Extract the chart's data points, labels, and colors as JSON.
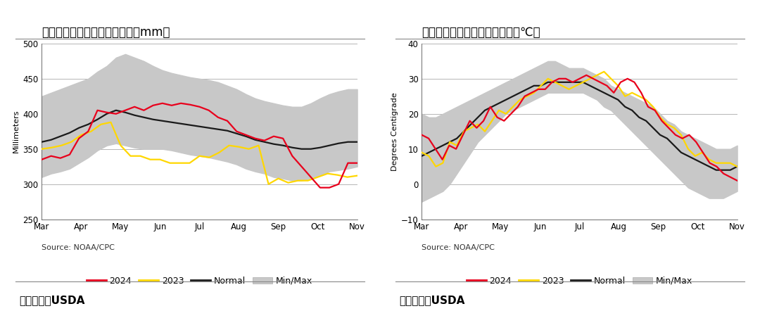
{
  "title1": "图：美豆主产区土壤墧情状况（mm）",
  "title2": "图：美豆主产区最高气温情况（℃）",
  "ylabel1": "Millimeters",
  "ylabel2": "Degrees Centigrade",
  "source_text": "Source: NOAA/CPC",
  "footer_text": "图表来源：USDA",
  "x_labels": [
    "Mar",
    "Apr",
    "May",
    "Jun",
    "Jul",
    "Aug",
    "Sep",
    "Oct",
    "Nov"
  ],
  "chart1": {
    "ylim": [
      250,
      500
    ],
    "yticks": [
      250,
      300,
      350,
      400,
      450,
      500
    ],
    "soil_2024": [
      335,
      340,
      337,
      342,
      365,
      375,
      405,
      402,
      400,
      405,
      410,
      405,
      412,
      415,
      412,
      415,
      413,
      410,
      405,
      395,
      390,
      375,
      370,
      365,
      362,
      368,
      365,
      340,
      325,
      310,
      295,
      295,
      300,
      330,
      330
    ],
    "soil_2023": [
      350,
      352,
      355,
      360,
      370,
      375,
      385,
      388,
      355,
      340,
      340,
      335,
      335,
      330,
      330,
      330,
      340,
      338,
      345,
      355,
      353,
      350,
      355,
      300,
      308,
      302,
      305,
      305,
      310,
      315,
      313,
      310,
      312
    ],
    "soil_normal": [
      360,
      363,
      368,
      373,
      380,
      385,
      392,
      400,
      405,
      402,
      398,
      395,
      392,
      390,
      388,
      386,
      384,
      382,
      380,
      378,
      376,
      372,
      368,
      363,
      360,
      357,
      355,
      352,
      350,
      350,
      352,
      355,
      358,
      360,
      360
    ],
    "soil_min": [
      310,
      315,
      318,
      322,
      330,
      338,
      348,
      355,
      358,
      355,
      352,
      350,
      350,
      350,
      348,
      345,
      342,
      340,
      338,
      335,
      332,
      328,
      322,
      318,
      315,
      310,
      308,
      305,
      305,
      308,
      312,
      318,
      320,
      322,
      325
    ],
    "soil_max": [
      425,
      430,
      435,
      440,
      445,
      450,
      460,
      468,
      480,
      485,
      480,
      475,
      468,
      462,
      458,
      455,
      452,
      450,
      448,
      445,
      440,
      435,
      428,
      422,
      418,
      415,
      412,
      410,
      410,
      415,
      422,
      428,
      432,
      435,
      435
    ]
  },
  "chart2": {
    "ylim": [
      -10,
      40
    ],
    "yticks": [
      -10,
      0,
      10,
      20,
      30,
      40
    ],
    "temp_2024": [
      14,
      13,
      10,
      7,
      11,
      10,
      14,
      18,
      16,
      18,
      22,
      19,
      18,
      20,
      22,
      25,
      26,
      27,
      27,
      29,
      30,
      30,
      29,
      30,
      31,
      30,
      29,
      28,
      26,
      29,
      30,
      29,
      26,
      22,
      21,
      18,
      16,
      14,
      13,
      14,
      12,
      9,
      6,
      5,
      3,
      2,
      1
    ],
    "temp_2023": [
      9,
      8,
      5,
      6,
      12,
      11,
      15,
      16,
      17,
      15,
      18,
      21,
      20,
      22,
      24,
      25,
      26,
      28,
      30,
      29,
      28,
      27,
      28,
      29,
      30,
      31,
      32,
      30,
      28,
      25,
      26,
      25,
      24,
      22,
      19,
      17,
      16,
      14,
      10,
      8,
      9,
      7,
      6,
      6,
      6,
      5
    ],
    "temp_normal": [
      8,
      9,
      10,
      11,
      12,
      13,
      15,
      17,
      19,
      21,
      22,
      23,
      24,
      25,
      26,
      27,
      28,
      28,
      29,
      29,
      29,
      29,
      29,
      29,
      28,
      27,
      26,
      25,
      24,
      22,
      21,
      19,
      18,
      16,
      14,
      13,
      11,
      9,
      8,
      7,
      6,
      5,
      4,
      4,
      4,
      5
    ],
    "temp_min": [
      -5,
      -4,
      -3,
      -2,
      0,
      3,
      6,
      9,
      12,
      14,
      16,
      18,
      20,
      21,
      22,
      23,
      24,
      25,
      26,
      26,
      26,
      26,
      26,
      26,
      25,
      24,
      22,
      21,
      19,
      17,
      15,
      13,
      11,
      9,
      7,
      5,
      3,
      1,
      -1,
      -2,
      -3,
      -4,
      -4,
      -4,
      -3,
      -2
    ],
    "temp_max": [
      20,
      19,
      19,
      20,
      21,
      22,
      23,
      24,
      25,
      26,
      27,
      28,
      29,
      30,
      31,
      32,
      33,
      34,
      35,
      35,
      34,
      33,
      33,
      33,
      32,
      31,
      30,
      28,
      27,
      26,
      25,
      24,
      23,
      22,
      20,
      18,
      17,
      15,
      14,
      13,
      12,
      11,
      10,
      10,
      10,
      11
    ]
  },
  "color_2024": "#e8001c",
  "color_2023": "#ffd700",
  "color_normal": "#1a1a1a",
  "color_minmax": "#c8c8c8",
  "bg_color": "#ffffff",
  "legend_labels": [
    "2024",
    "2023",
    "Normal",
    "Min/Max"
  ],
  "title_fontsize": 12,
  "tick_fontsize": 8.5,
  "label_fontsize": 8,
  "source_fontsize": 8,
  "footer_fontsize": 11,
  "legend_fontsize": 9
}
